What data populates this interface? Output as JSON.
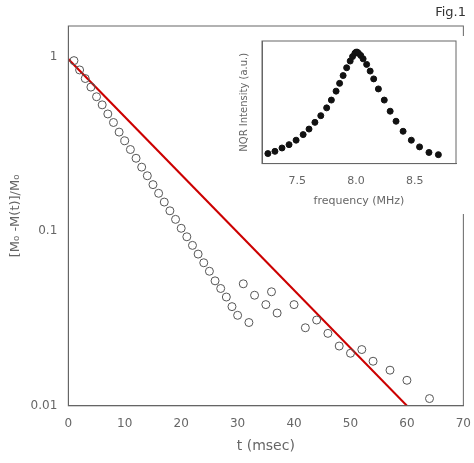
{
  "chart_data": [
    {
      "type": "scatter",
      "annotation": "Fig.1",
      "xlabel": "t (msec)",
      "ylabel": "[M₀ -M(t)]/M₀",
      "log": "y",
      "xlim": [
        0,
        70
      ],
      "xticks": [
        0,
        10,
        20,
        30,
        40,
        50,
        60,
        70
      ],
      "ylim": [
        0.01,
        1.5
      ],
      "yticks": [
        0.01,
        0.1,
        1
      ],
      "grid": false,
      "series": [
        {
          "type": "line",
          "color": "#cc0000",
          "line_style": "solid",
          "x": [
            0,
            60
          ],
          "values": [
            0.97,
            0.01
          ]
        },
        {
          "type": "scatter",
          "color": "#555555",
          "marker": "open_circle",
          "x": [
            1,
            2,
            3,
            4,
            5,
            6,
            7,
            8,
            9,
            10,
            11,
            12,
            13,
            14,
            15,
            16,
            17,
            18,
            19,
            20,
            21,
            22,
            23,
            24,
            25,
            26,
            27,
            28,
            29,
            30,
            31,
            33,
            35,
            37,
            32,
            36,
            40,
            44,
            42,
            46,
            48,
            50,
            52,
            54,
            57,
            60,
            64
          ],
          "values": [
            0.95,
            0.84,
            0.75,
            0.67,
            0.59,
            0.53,
            0.47,
            0.42,
            0.37,
            0.33,
            0.294,
            0.262,
            0.233,
            0.208,
            0.185,
            0.165,
            0.147,
            0.131,
            0.117,
            0.104,
            0.093,
            0.083,
            0.074,
            0.066,
            0.059,
            0.052,
            0.047,
            0.042,
            0.037,
            0.033,
            0.05,
            0.043,
            0.038,
            0.034,
            0.03,
            0.045,
            0.038,
            0.031,
            0.028,
            0.026,
            0.022,
            0.02,
            0.021,
            0.018,
            0.016,
            0.014,
            0.011
          ]
        }
      ]
    },
    {
      "type": "scatter",
      "xlabel": "frequency (MHz)",
      "ylabel": "NQR Intensity (a.u.)",
      "xlim": [
        7.2,
        8.85
      ],
      "xticks": [
        7.5,
        {
          "value": 8,
          "label": "8.0"
        },
        8.5
      ],
      "ylim": [
        0,
        1.1
      ],
      "tick_labels": "x",
      "grid": false,
      "series": [
        {
          "type": "scatter",
          "color": "#111111",
          "marker": "circle",
          "x": [
            7.25,
            7.31,
            7.37,
            7.43,
            7.49,
            7.55,
            7.6,
            7.65,
            7.7,
            7.75,
            7.79,
            7.83,
            7.86,
            7.89,
            7.92,
            7.95,
            7.97,
            7.99,
            8.0,
            8.01,
            8.02,
            8.04,
            8.06,
            8.09,
            8.12,
            8.15,
            8.19,
            8.24,
            8.29,
            8.34,
            8.4,
            8.47,
            8.54,
            8.62,
            8.7
          ],
          "values": [
            0.09,
            0.11,
            0.14,
            0.17,
            0.21,
            0.26,
            0.31,
            0.37,
            0.43,
            0.5,
            0.57,
            0.65,
            0.72,
            0.79,
            0.86,
            0.92,
            0.96,
            0.99,
            1.0,
            1.0,
            0.99,
            0.97,
            0.94,
            0.89,
            0.83,
            0.76,
            0.67,
            0.57,
            0.47,
            0.38,
            0.29,
            0.21,
            0.15,
            0.1,
            0.08
          ]
        }
      ]
    }
  ]
}
